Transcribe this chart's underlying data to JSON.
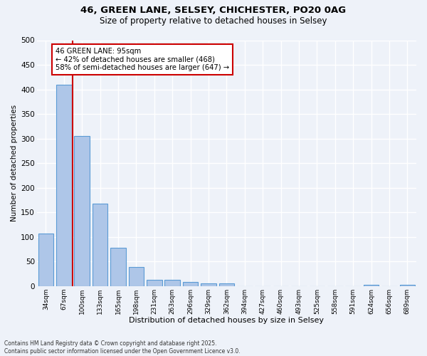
{
  "title_line1": "46, GREEN LANE, SELSEY, CHICHESTER, PO20 0AG",
  "title_line2": "Size of property relative to detached houses in Selsey",
  "xlabel": "Distribution of detached houses by size in Selsey",
  "ylabel": "Number of detached properties",
  "categories": [
    "34sqm",
    "67sqm",
    "100sqm",
    "133sqm",
    "165sqm",
    "198sqm",
    "231sqm",
    "263sqm",
    "296sqm",
    "329sqm",
    "362sqm",
    "394sqm",
    "427sqm",
    "460sqm",
    "493sqm",
    "525sqm",
    "558sqm",
    "591sqm",
    "624sqm",
    "656sqm",
    "689sqm"
  ],
  "values": [
    107,
    410,
    305,
    167,
    78,
    38,
    13,
    12,
    8,
    5,
    5,
    0,
    0,
    0,
    0,
    0,
    0,
    0,
    3,
    0,
    2
  ],
  "bar_color": "#aec6e8",
  "bar_edge_color": "#5b9bd5",
  "vline_color": "#cc0000",
  "annotation_text": "46 GREEN LANE: 95sqm\n← 42% of detached houses are smaller (468)\n58% of semi-detached houses are larger (647) →",
  "annotation_box_color": "#ffffff",
  "annotation_box_edge_color": "#cc0000",
  "ylim": [
    0,
    500
  ],
  "yticks": [
    0,
    50,
    100,
    150,
    200,
    250,
    300,
    350,
    400,
    450,
    500
  ],
  "bg_color": "#eef2f9",
  "grid_color": "#ffffff",
  "footnote": "Contains HM Land Registry data © Crown copyright and database right 2025.\nContains public sector information licensed under the Open Government Licence v3.0."
}
